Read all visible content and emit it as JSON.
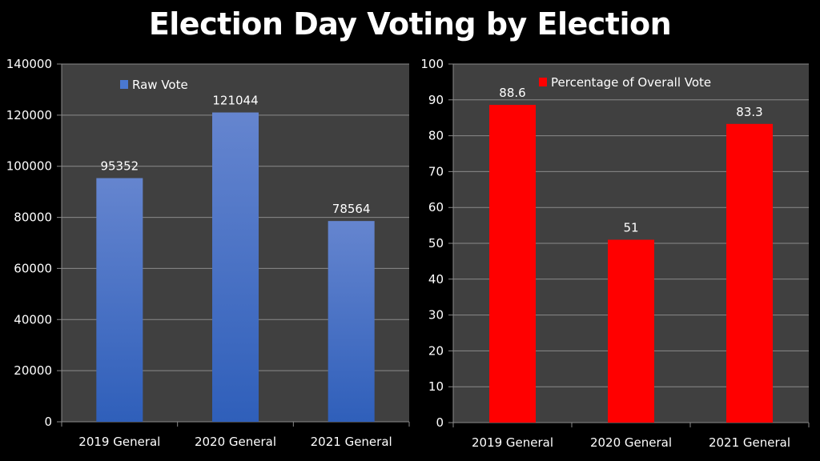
{
  "title": "Election Day Voting by Election",
  "chart_data": [
    {
      "type": "bar",
      "title": "",
      "categories": [
        "2019 General",
        "2020 General",
        "2021 General"
      ],
      "series": [
        {
          "name": "Raw Vote",
          "values": [
            95352,
            121044,
            78564
          ],
          "color": "#4472C4"
        }
      ],
      "data_labels": [
        "95352",
        "121044",
        "78564"
      ],
      "ylim": [
        0,
        140000
      ],
      "yticks": [
        0,
        20000,
        40000,
        60000,
        80000,
        100000,
        120000,
        140000
      ],
      "ytick_labels": [
        "0",
        "20000",
        "40000",
        "60000",
        "80000",
        "100000",
        "120000",
        "140000"
      ],
      "xlabel": "",
      "ylabel": "",
      "grid": true,
      "legend": "top-left",
      "plot_background": "#404040"
    },
    {
      "type": "bar",
      "title": "",
      "categories": [
        "2019 General",
        "2020 General",
        "2021 General"
      ],
      "series": [
        {
          "name": "Percentage of Overall Vote",
          "values": [
            88.6,
            51,
            83.3
          ],
          "color": "#FF0000"
        }
      ],
      "data_labels": [
        "88.6",
        "51",
        "83.3"
      ],
      "ylim": [
        0,
        100
      ],
      "yticks": [
        0,
        10,
        20,
        30,
        40,
        50,
        60,
        70,
        80,
        90,
        100
      ],
      "ytick_labels": [
        "0",
        "10",
        "20",
        "30",
        "40",
        "50",
        "60",
        "70",
        "80",
        "90",
        "100"
      ],
      "xlabel": "",
      "ylabel": "",
      "grid": true,
      "legend": "top-center",
      "plot_background": "#404040"
    }
  ]
}
